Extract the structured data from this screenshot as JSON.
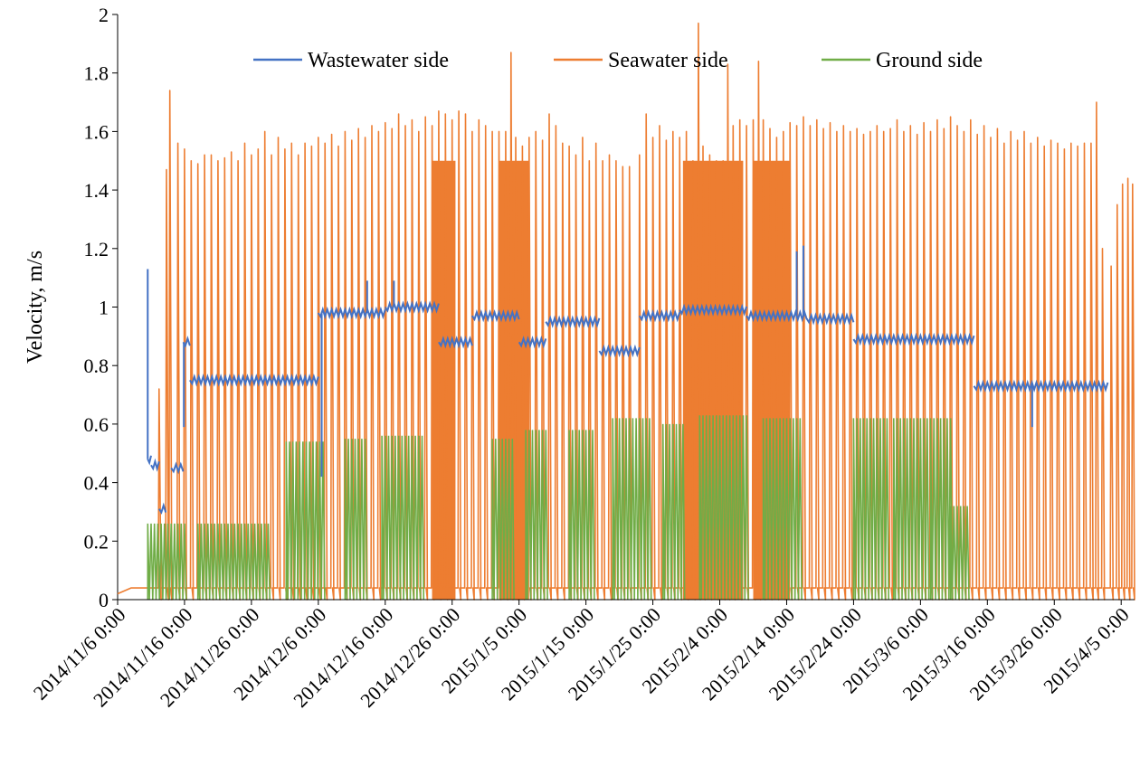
{
  "chart_data": {
    "type": "line",
    "title": "",
    "xlabel": "",
    "ylabel": "Velocity, m/s",
    "ylim": [
      0,
      2
    ],
    "yticks": [
      "0",
      "0.2",
      "0.4",
      "0.6",
      "0.8",
      "1",
      "1.2",
      "1.4",
      "1.6",
      "1.8",
      "2"
    ],
    "xlim_days": [
      0,
      152
    ],
    "xtick_days": [
      0,
      10,
      20,
      30,
      40,
      50,
      60,
      70,
      80,
      90,
      100,
      110,
      120,
      130,
      140,
      150
    ],
    "xticks": [
      "2014/11/6 0:00",
      "2014/11/16 0:00",
      "2014/11/26 0:00",
      "2014/12/6 0:00",
      "2014/12/16 0:00",
      "2014/12/26 0:00",
      "2015/1/5 0:00",
      "2015/1/15 0:00",
      "2015/1/25 0:00",
      "2015/2/4 0:00",
      "2015/2/14 0:00",
      "2015/2/24 0:00",
      "2015/3/6 0:00",
      "2015/3/16 0:00",
      "2015/3/26 0:00",
      "2015/4/5 0:00"
    ],
    "legend_position": "top",
    "series": [
      {
        "name": "Wastewater side",
        "color": "#4472C4",
        "description": "Baseline velocity segments (day ranges, m/s)",
        "segments": [
          {
            "from": 4.5,
            "to": 5,
            "level": 0.48
          },
          {
            "from": 5,
            "to": 6.2,
            "level": 0.46
          },
          {
            "from": 6.2,
            "to": 7.2,
            "level": 0.31
          },
          {
            "from": 8,
            "to": 9.8,
            "level": 0.45
          },
          {
            "from": 9.8,
            "to": 10.8,
            "level": 0.88
          },
          {
            "from": 10.8,
            "to": 30,
            "level": 0.75
          },
          {
            "from": 30,
            "to": 40,
            "level": 0.98
          },
          {
            "from": 40,
            "to": 48,
            "level": 1.0
          },
          {
            "from": 48,
            "to": 53,
            "level": 0.88
          },
          {
            "from": 53,
            "to": 60,
            "level": 0.97
          },
          {
            "from": 60,
            "to": 64,
            "level": 0.88
          },
          {
            "from": 64,
            "to": 72,
            "level": 0.95
          },
          {
            "from": 72,
            "to": 78,
            "level": 0.85
          },
          {
            "from": 78,
            "to": 84,
            "level": 0.97
          },
          {
            "from": 84,
            "to": 94,
            "level": 0.99
          },
          {
            "from": 94,
            "to": 103,
            "level": 0.97
          },
          {
            "from": 103,
            "to": 110,
            "level": 0.96
          },
          {
            "from": 110,
            "to": 128,
            "level": 0.89
          },
          {
            "from": 128,
            "to": 148,
            "level": 0.73
          }
        ],
        "spikes": [
          {
            "day": 4.5,
            "value": 1.13
          },
          {
            "day": 9.9,
            "value": 0.59
          },
          {
            "day": 30.5,
            "value": 0.42
          },
          {
            "day": 37.3,
            "value": 1.09
          },
          {
            "day": 41.3,
            "value": 1.09
          },
          {
            "day": 101.5,
            "value": 1.19
          },
          {
            "day": 102.5,
            "value": 1.21
          },
          {
            "day": 136.7,
            "value": 0.59
          }
        ]
      },
      {
        "name": "Seawater side",
        "color": "#ED7D31",
        "description": "Daily peak velocity (m/s); baseline between peaks ≈ 0.04",
        "baseline": 0.04,
        "dense_fill_day_ranges": [
          [
            47,
            50.5
          ],
          [
            57,
            61.5
          ],
          [
            84.5,
            93.5
          ],
          [
            95,
            100.5
          ]
        ],
        "peaks": [
          {
            "day": 6.2,
            "value": 0.72
          },
          {
            "day": 7.3,
            "value": 1.47
          },
          {
            "day": 7.8,
            "value": 1.74
          },
          {
            "day": 9,
            "value": 1.56
          },
          {
            "day": 10,
            "value": 1.54
          },
          {
            "day": 11,
            "value": 1.5
          },
          {
            "day": 12,
            "value": 1.49
          },
          {
            "day": 13,
            "value": 1.52
          },
          {
            "day": 14,
            "value": 1.52
          },
          {
            "day": 15,
            "value": 1.5
          },
          {
            "day": 16,
            "value": 1.51
          },
          {
            "day": 17,
            "value": 1.53
          },
          {
            "day": 18,
            "value": 1.5
          },
          {
            "day": 19,
            "value": 1.56
          },
          {
            "day": 20,
            "value": 1.52
          },
          {
            "day": 21,
            "value": 1.54
          },
          {
            "day": 22,
            "value": 1.6
          },
          {
            "day": 23,
            "value": 1.52
          },
          {
            "day": 24,
            "value": 1.58
          },
          {
            "day": 25,
            "value": 1.54
          },
          {
            "day": 26,
            "value": 1.56
          },
          {
            "day": 27,
            "value": 1.52
          },
          {
            "day": 28,
            "value": 1.56
          },
          {
            "day": 29,
            "value": 1.55
          },
          {
            "day": 30,
            "value": 1.58
          },
          {
            "day": 31,
            "value": 1.56
          },
          {
            "day": 32,
            "value": 1.59
          },
          {
            "day": 33,
            "value": 1.55
          },
          {
            "day": 34,
            "value": 1.6
          },
          {
            "day": 35,
            "value": 1.57
          },
          {
            "day": 36,
            "value": 1.61
          },
          {
            "day": 37,
            "value": 1.58
          },
          {
            "day": 38,
            "value": 1.62
          },
          {
            "day": 39,
            "value": 1.6
          },
          {
            "day": 40,
            "value": 1.63
          },
          {
            "day": 41,
            "value": 1.61
          },
          {
            "day": 42,
            "value": 1.66
          },
          {
            "day": 43,
            "value": 1.62
          },
          {
            "day": 44,
            "value": 1.64
          },
          {
            "day": 45,
            "value": 1.6
          },
          {
            "day": 46,
            "value": 1.65
          },
          {
            "day": 47,
            "value": 1.62
          },
          {
            "day": 48,
            "value": 1.67
          },
          {
            "day": 49,
            "value": 1.66
          },
          {
            "day": 50,
            "value": 1.64
          },
          {
            "day": 51,
            "value": 1.67
          },
          {
            "day": 52,
            "value": 1.66
          },
          {
            "day": 53,
            "value": 1.6
          },
          {
            "day": 54,
            "value": 1.64
          },
          {
            "day": 55,
            "value": 1.62
          },
          {
            "day": 56,
            "value": 1.6
          },
          {
            "day": 57,
            "value": 1.6
          },
          {
            "day": 58,
            "value": 1.6
          },
          {
            "day": 58.8,
            "value": 1.87
          },
          {
            "day": 59.5,
            "value": 1.58
          },
          {
            "day": 60.5,
            "value": 1.55
          },
          {
            "day": 61.5,
            "value": 1.58
          },
          {
            "day": 62.5,
            "value": 1.6
          },
          {
            "day": 63.5,
            "value": 1.57
          },
          {
            "day": 64.5,
            "value": 1.66
          },
          {
            "day": 65.5,
            "value": 1.62
          },
          {
            "day": 66.5,
            "value": 1.56
          },
          {
            "day": 67.5,
            "value": 1.55
          },
          {
            "day": 68.5,
            "value": 1.52
          },
          {
            "day": 69.5,
            "value": 1.58
          },
          {
            "day": 70.5,
            "value": 1.5
          },
          {
            "day": 71.5,
            "value": 1.56
          },
          {
            "day": 72.5,
            "value": 1.5
          },
          {
            "day": 73.5,
            "value": 1.52
          },
          {
            "day": 74.5,
            "value": 1.5
          },
          {
            "day": 75.5,
            "value": 1.48
          },
          {
            "day": 76.5,
            "value": 1.48
          },
          {
            "day": 78,
            "value": 1.52
          },
          {
            "day": 79,
            "value": 1.66
          },
          {
            "day": 80,
            "value": 1.58
          },
          {
            "day": 81,
            "value": 1.62
          },
          {
            "day": 82,
            "value": 1.57
          },
          {
            "day": 83,
            "value": 1.6
          },
          {
            "day": 84,
            "value": 1.58
          },
          {
            "day": 85,
            "value": 1.6
          },
          {
            "day": 86,
            "value": 1.5
          },
          {
            "day": 86.8,
            "value": 1.97
          },
          {
            "day": 87.5,
            "value": 1.55
          },
          {
            "day": 88.5,
            "value": 1.52
          },
          {
            "day": 89.5,
            "value": 1.5
          },
          {
            "day": 90.5,
            "value": 1.5
          },
          {
            "day": 91.2,
            "value": 1.83
          },
          {
            "day": 92,
            "value": 1.62
          },
          {
            "day": 93,
            "value": 1.64
          },
          {
            "day": 94,
            "value": 1.62
          },
          {
            "day": 95,
            "value": 1.64
          },
          {
            "day": 95.8,
            "value": 1.84
          },
          {
            "day": 96.5,
            "value": 1.64
          },
          {
            "day": 97.5,
            "value": 1.61
          },
          {
            "day": 98.5,
            "value": 1.58
          },
          {
            "day": 99.5,
            "value": 1.6
          },
          {
            "day": 100.5,
            "value": 1.63
          },
          {
            "day": 101.5,
            "value": 1.62
          },
          {
            "day": 102.5,
            "value": 1.65
          },
          {
            "day": 103.5,
            "value": 1.62
          },
          {
            "day": 104.5,
            "value": 1.64
          },
          {
            "day": 105.5,
            "value": 1.61
          },
          {
            "day": 106.5,
            "value": 1.63
          },
          {
            "day": 107.5,
            "value": 1.6
          },
          {
            "day": 108.5,
            "value": 1.62
          },
          {
            "day": 109.5,
            "value": 1.6
          },
          {
            "day": 110.5,
            "value": 1.61
          },
          {
            "day": 111.5,
            "value": 1.59
          },
          {
            "day": 112.5,
            "value": 1.6
          },
          {
            "day": 113.5,
            "value": 1.62
          },
          {
            "day": 114.5,
            "value": 1.6
          },
          {
            "day": 115.5,
            "value": 1.61
          },
          {
            "day": 116.5,
            "value": 1.64
          },
          {
            "day": 117.5,
            "value": 1.6
          },
          {
            "day": 118.5,
            "value": 1.62
          },
          {
            "day": 119.5,
            "value": 1.59
          },
          {
            "day": 120.5,
            "value": 1.63
          },
          {
            "day": 121.5,
            "value": 1.6
          },
          {
            "day": 122.5,
            "value": 1.64
          },
          {
            "day": 123.5,
            "value": 1.61
          },
          {
            "day": 124.5,
            "value": 1.65
          },
          {
            "day": 125.5,
            "value": 1.62
          },
          {
            "day": 126.5,
            "value": 1.6
          },
          {
            "day": 127.5,
            "value": 1.64
          },
          {
            "day": 128.5,
            "value": 1.59
          },
          {
            "day": 129.5,
            "value": 1.62
          },
          {
            "day": 130.5,
            "value": 1.58
          },
          {
            "day": 131.5,
            "value": 1.61
          },
          {
            "day": 132.5,
            "value": 1.56
          },
          {
            "day": 133.5,
            "value": 1.6
          },
          {
            "day": 134.5,
            "value": 1.57
          },
          {
            "day": 135.5,
            "value": 1.6
          },
          {
            "day": 136.5,
            "value": 1.56
          },
          {
            "day": 137.5,
            "value": 1.58
          },
          {
            "day": 138.5,
            "value": 1.55
          },
          {
            "day": 139.5,
            "value": 1.57
          },
          {
            "day": 140.5,
            "value": 1.56
          },
          {
            "day": 141.5,
            "value": 1.54
          },
          {
            "day": 142.5,
            "value": 1.56
          },
          {
            "day": 143.5,
            "value": 1.55
          },
          {
            "day": 144.5,
            "value": 1.56
          },
          {
            "day": 145.5,
            "value": 1.56
          },
          {
            "day": 146.3,
            "value": 1.7
          },
          {
            "day": 147.2,
            "value": 1.2
          },
          {
            "day": 148.5,
            "value": 1.14
          },
          {
            "day": 149.4,
            "value": 1.35
          },
          {
            "day": 150.2,
            "value": 1.42
          },
          {
            "day": 151,
            "value": 1.44
          },
          {
            "day": 151.7,
            "value": 1.42
          }
        ]
      },
      {
        "name": "Ground side",
        "color": "#70AD47",
        "description": "Active-period peak level (m/s) by day range",
        "segments": [
          {
            "from": 4.5,
            "to": 10,
            "level": 0.26
          },
          {
            "from": 12,
            "to": 22.5,
            "level": 0.26
          },
          {
            "from": 25.2,
            "to": 31,
            "level": 0.54
          },
          {
            "from": 34,
            "to": 37,
            "level": 0.55
          },
          {
            "from": 39.5,
            "to": 45.5,
            "level": 0.56
          },
          {
            "from": 56,
            "to": 59,
            "level": 0.55
          },
          {
            "from": 61,
            "to": 64,
            "level": 0.58
          },
          {
            "from": 67.5,
            "to": 71,
            "level": 0.58
          },
          {
            "from": 74,
            "to": 79.5,
            "level": 0.62
          },
          {
            "from": 81.5,
            "to": 84.5,
            "level": 0.6
          },
          {
            "from": 87,
            "to": 94,
            "level": 0.63
          },
          {
            "from": 96.5,
            "to": 102,
            "level": 0.62
          },
          {
            "from": 110,
            "to": 115,
            "level": 0.62
          },
          {
            "from": 116,
            "to": 121,
            "level": 0.62
          },
          {
            "from": 121.5,
            "to": 124.5,
            "level": 0.62
          },
          {
            "from": 124.5,
            "to": 127,
            "level": 0.32
          }
        ]
      }
    ]
  }
}
